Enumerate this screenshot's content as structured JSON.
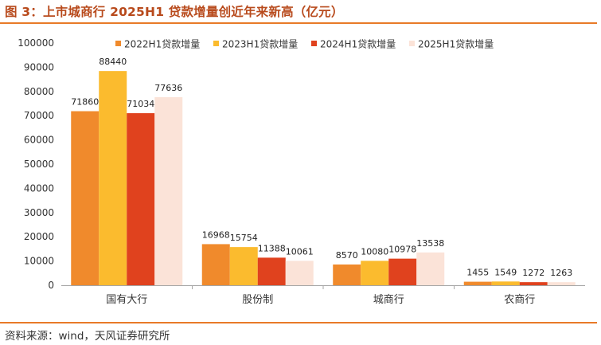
{
  "header": {
    "title": "图 3：上市城商行 2025H1 贷款增量创近年来新高（亿元）"
  },
  "footer": {
    "source": "资料来源：wind，天风证券研究所"
  },
  "colors": {
    "accent": "#e87a28",
    "title": "#b84a1c"
  },
  "chart_data": {
    "type": "bar",
    "title": "",
    "xlabel": "",
    "ylabel": "",
    "categories": [
      "国有大行",
      "股份制",
      "城商行",
      "农商行"
    ],
    "series": [
      {
        "name": "2022H1贷款增量",
        "color": "#f08a2c",
        "values": [
          71860,
          16968,
          8570,
          1455
        ]
      },
      {
        "name": "2023H1贷款增量",
        "color": "#fbbb2e",
        "values": [
          88440,
          15754,
          10080,
          1549
        ]
      },
      {
        "name": "2024H1贷款增量",
        "color": "#e0421e",
        "values": [
          71034,
          11388,
          10978,
          1272
        ]
      },
      {
        "name": "2025H1贷款增量",
        "color": "#fbe3d8",
        "values": [
          77636,
          10061,
          13538,
          1263
        ]
      }
    ],
    "ylim": [
      0,
      100000
    ],
    "yticks": [
      0,
      10000,
      20000,
      30000,
      40000,
      50000,
      60000,
      70000,
      80000,
      90000,
      100000
    ],
    "grid": false,
    "legend": "top"
  }
}
